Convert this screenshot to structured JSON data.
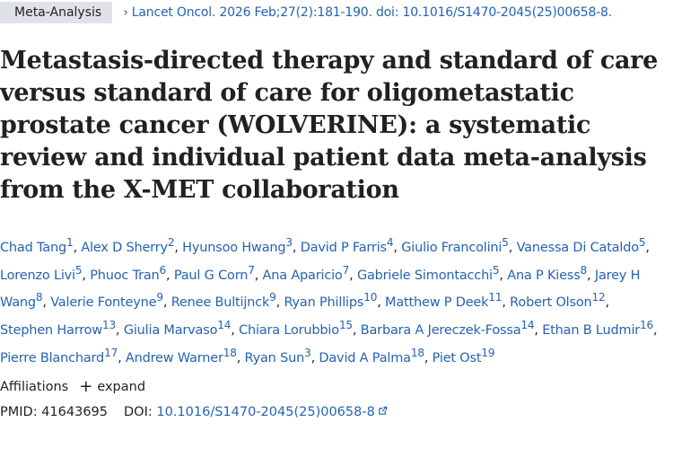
{
  "header": {
    "badge": "Meta-Analysis",
    "chevron": "›",
    "citation": "Lancet Oncol. 2026 Feb;27(2):181-190. doi: 10.1016/S1470-2045(25)00658-8."
  },
  "article": {
    "title": "Metastasis-directed therapy and standard of care versus standard of care for oligometastatic prostate cancer (WOLVERINE): a systematic review and individual patient data meta-analysis from the X-MET collaboration"
  },
  "authors": [
    {
      "name": "Chad Tang",
      "aff": "1"
    },
    {
      "name": "Alex D Sherry",
      "aff": "2"
    },
    {
      "name": "Hyunsoo Hwang",
      "aff": "3"
    },
    {
      "name": "David P Farris",
      "aff": "4"
    },
    {
      "name": "Giulio Francolini",
      "aff": "5"
    },
    {
      "name": "Vanessa Di Cataldo",
      "aff": "5"
    },
    {
      "name": "Lorenzo Livi",
      "aff": "5"
    },
    {
      "name": "Phuoc Tran",
      "aff": "6"
    },
    {
      "name": "Paul G Corn",
      "aff": "7"
    },
    {
      "name": "Ana Aparicio",
      "aff": "7"
    },
    {
      "name": "Gabriele Simontacchi",
      "aff": "5"
    },
    {
      "name": "Ana P Kiess",
      "aff": "8"
    },
    {
      "name": "Jarey H Wang",
      "aff": "8"
    },
    {
      "name": "Valerie Fonteyne",
      "aff": "9"
    },
    {
      "name": "Renee Bultijnck",
      "aff": "9"
    },
    {
      "name": "Ryan Phillips",
      "aff": "10"
    },
    {
      "name": "Matthew P Deek",
      "aff": "11"
    },
    {
      "name": "Robert Olson",
      "aff": "12"
    },
    {
      "name": "Stephen Harrow",
      "aff": "13"
    },
    {
      "name": "Giulia Marvaso",
      "aff": "14"
    },
    {
      "name": "Chiara Lorubbio",
      "aff": "15"
    },
    {
      "name": "Barbara A Jereczek-Fossa",
      "aff": "14"
    },
    {
      "name": "Ethan B Ludmir",
      "aff": "16"
    },
    {
      "name": "Pierre Blanchard",
      "aff": "17"
    },
    {
      "name": "Andrew Warner",
      "aff": "18"
    },
    {
      "name": "Ryan Sun",
      "aff": "3"
    },
    {
      "name": "David A Palma",
      "aff": "18"
    },
    {
      "name": "Piet Ost",
      "aff": "19"
    }
  ],
  "affiliations": {
    "label": "Affiliations",
    "expand_symbol": "+",
    "expand_label": "expand"
  },
  "identifiers": {
    "pmid_label": "PMID:",
    "pmid": "41643695",
    "doi_label": "DOI:",
    "doi": "10.1016/S1470-2045(25)00658-8"
  },
  "icons": {
    "external_link": "external-link-icon"
  },
  "colors": {
    "link": "#2563b0",
    "badge_bg": "#dfe3e8",
    "text": "#212121"
  }
}
